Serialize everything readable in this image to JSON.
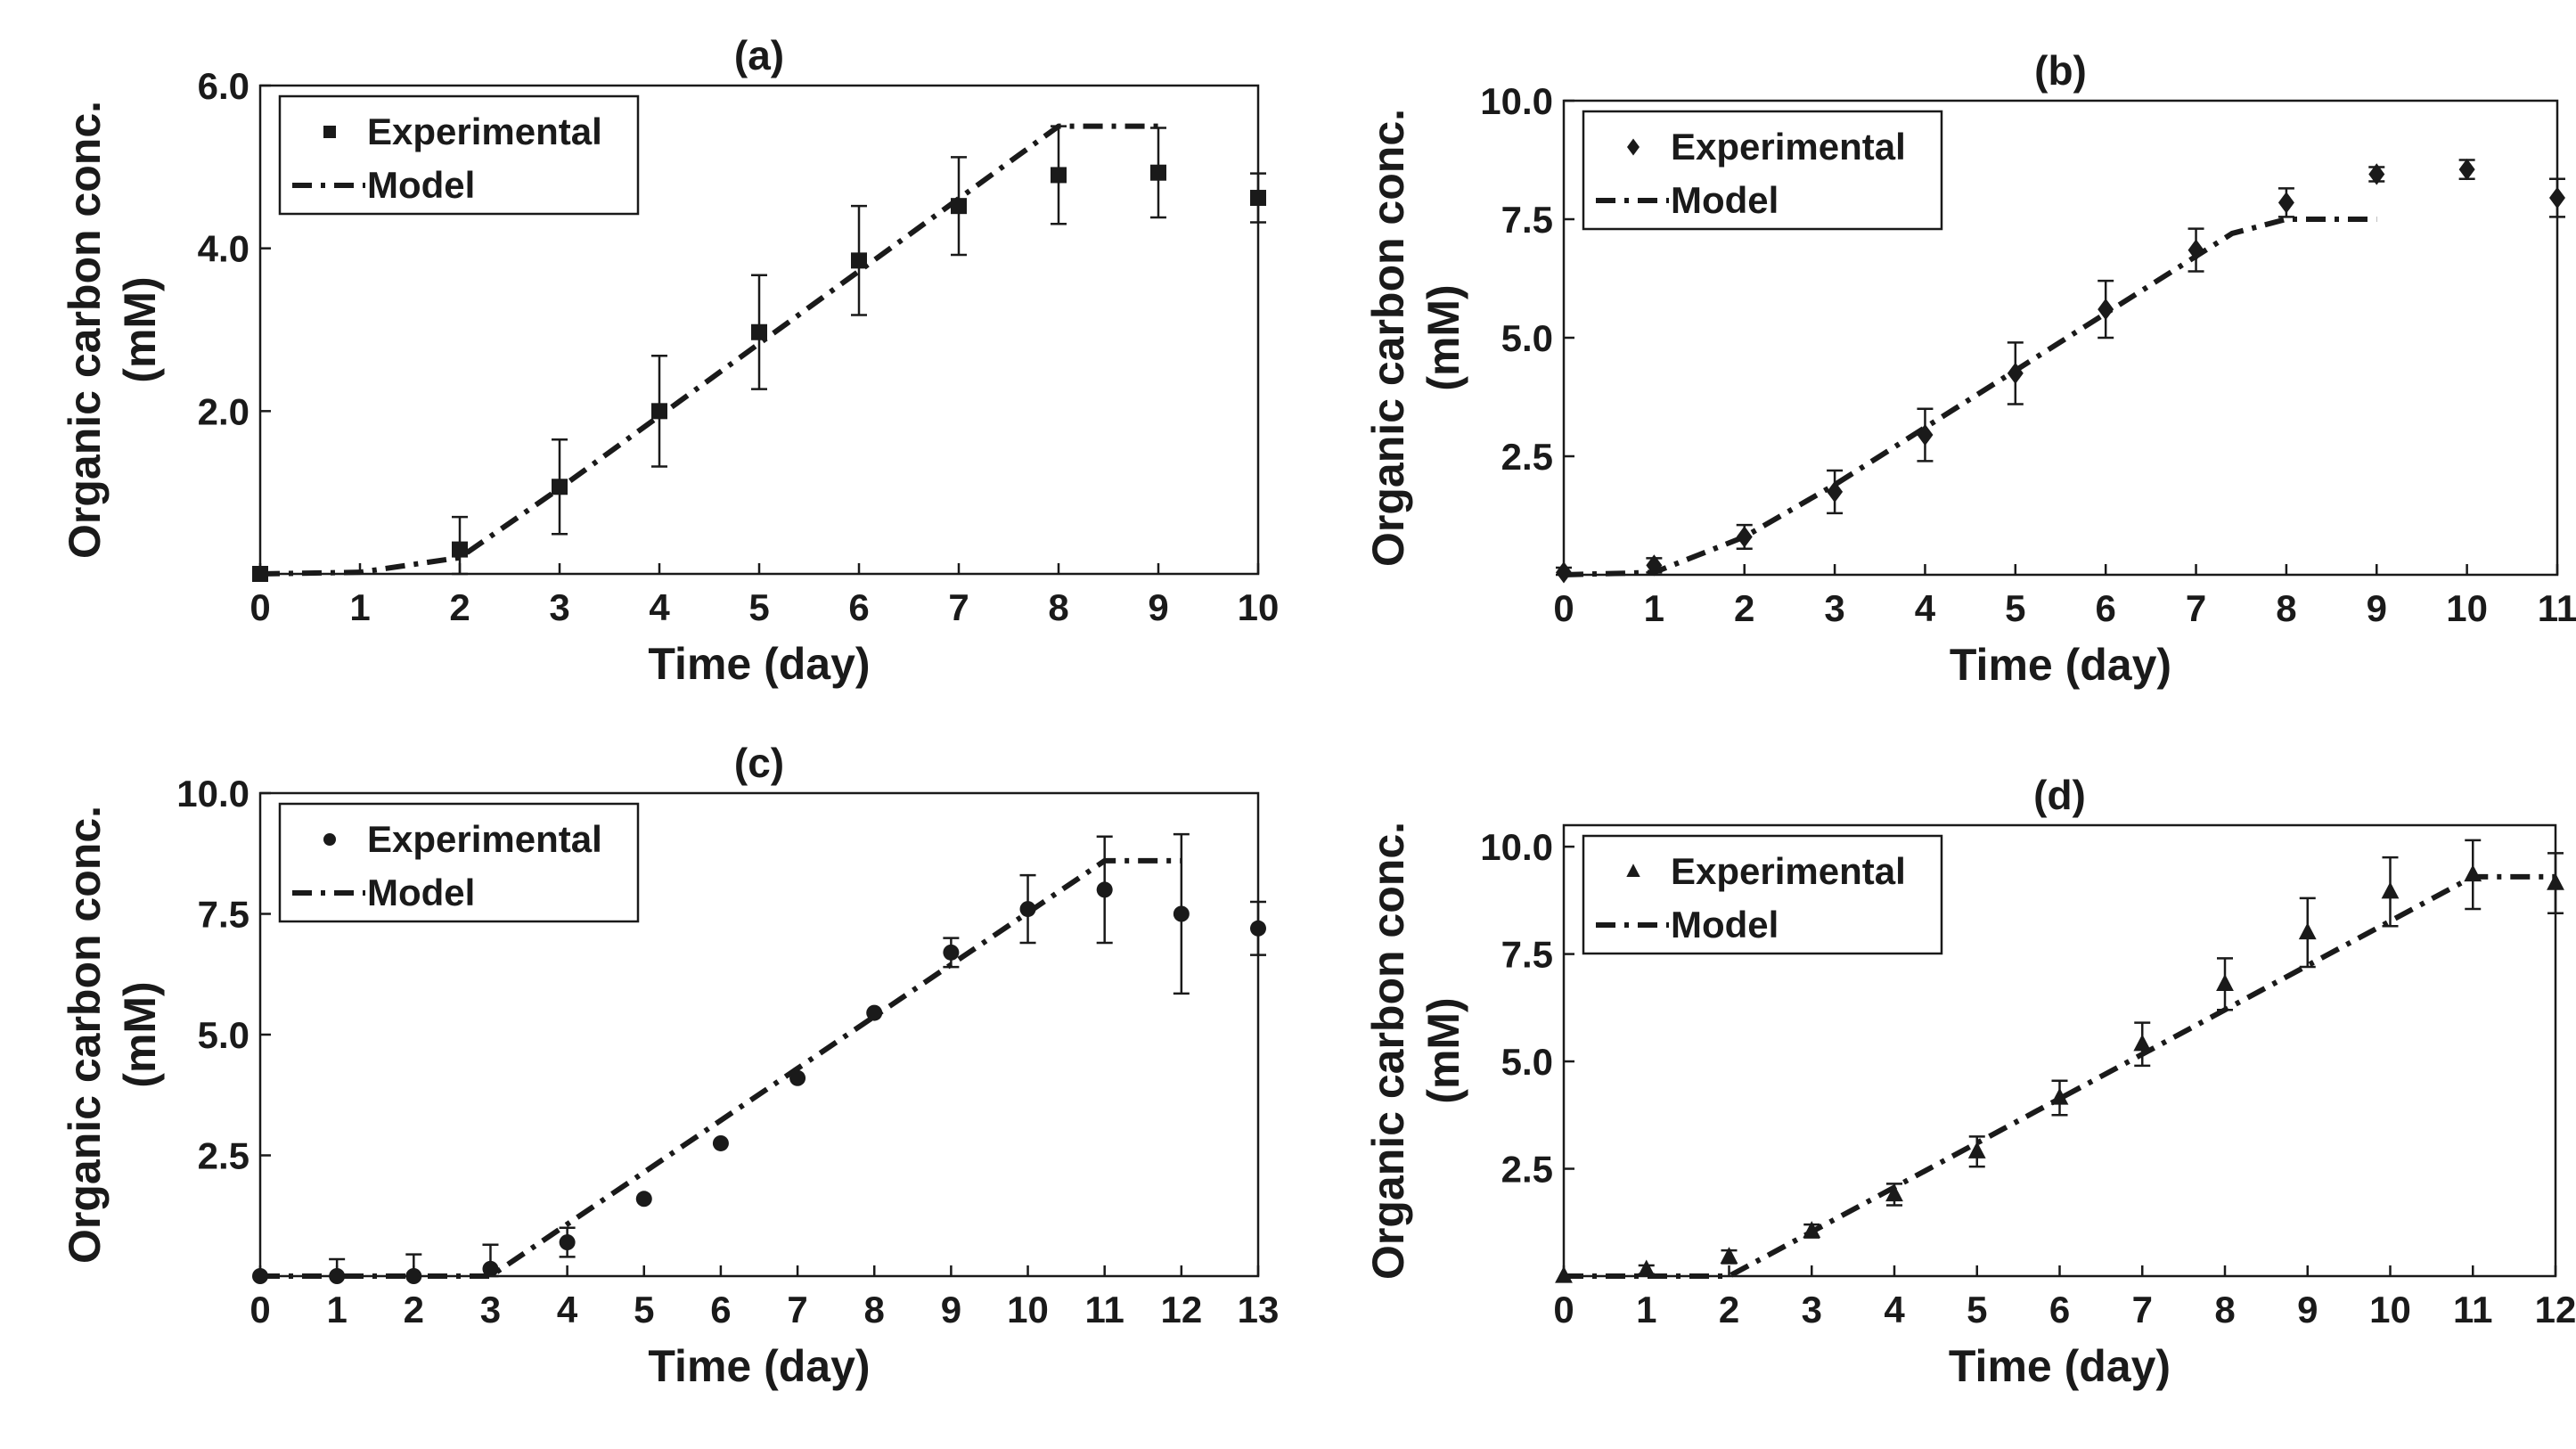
{
  "chart_data": [
    {
      "type": "scatter",
      "title": "(a)",
      "xlabel": "Time (day)",
      "ylabel": [
        "Organic carbon conc.",
        "(mM)"
      ],
      "xlim": [
        0,
        10
      ],
      "ylim": [
        0,
        6
      ],
      "xticks": [
        "0",
        "1",
        "2",
        "3",
        "4",
        "5",
        "6",
        "7",
        "8",
        "9",
        "10"
      ],
      "yticks": [
        {
          "value": 2,
          "label": "2.0"
        },
        {
          "value": 4,
          "label": "4.0"
        },
        {
          "value": 6,
          "label": "6.0"
        }
      ],
      "marker": "square",
      "legend": {
        "position": "top-left",
        "experimental_label": "Experimental",
        "model_label": "Model"
      },
      "experimental": {
        "x": [
          0,
          2,
          3,
          4,
          5,
          6,
          7,
          8,
          9,
          10
        ],
        "y": [
          0.0,
          0.3,
          1.07,
          2.0,
          2.97,
          3.85,
          4.52,
          4.9,
          4.93,
          4.62
        ],
        "err": [
          0.0,
          0.4,
          0.58,
          0.68,
          0.7,
          0.67,
          0.6,
          0.6,
          0.55,
          0.3
        ]
      },
      "model": {
        "x": [
          0,
          1,
          2,
          3,
          8,
          9
        ],
        "y": [
          0.0,
          0.02,
          0.2,
          1.05,
          5.5,
          5.5
        ]
      }
    },
    {
      "type": "scatter",
      "title": "(b)",
      "xlabel": "Time (day)",
      "ylabel": [
        "Organic carbon conc.",
        "(mM)"
      ],
      "xlim": [
        0,
        11
      ],
      "ylim": [
        0,
        10
      ],
      "xticks": [
        "0",
        "1",
        "2",
        "3",
        "4",
        "5",
        "6",
        "7",
        "8",
        "9",
        "10",
        "11"
      ],
      "yticks": [
        {
          "value": 2.5,
          "label": "2.5"
        },
        {
          "value": 5,
          "label": "5.0"
        },
        {
          "value": 7.5,
          "label": "7.5"
        },
        {
          "value": 10,
          "label": "10.0"
        }
      ],
      "marker": "diamond",
      "legend": {
        "position": "top-left",
        "experimental_label": "Experimental",
        "model_label": "Model"
      },
      "experimental": {
        "x": [
          0,
          1,
          2,
          3,
          4,
          5,
          6,
          7,
          8,
          9,
          10,
          11
        ],
        "y": [
          0.05,
          0.2,
          0.8,
          1.75,
          2.95,
          4.25,
          5.6,
          6.85,
          7.85,
          8.45,
          8.55,
          7.95
        ],
        "err": [
          0.1,
          0.15,
          0.25,
          0.45,
          0.55,
          0.65,
          0.6,
          0.45,
          0.3,
          0.15,
          0.2,
          0.4
        ]
      },
      "model": {
        "x": [
          0,
          1,
          2,
          3,
          7.4,
          8,
          9
        ],
        "y": [
          0.0,
          0.05,
          0.8,
          1.9,
          7.2,
          7.5,
          7.5
        ]
      }
    },
    {
      "type": "scatter",
      "title": "(c)",
      "xlabel": "Time (day)",
      "ylabel": [
        "Organic carbon conc.",
        "(mM)"
      ],
      "xlim": [
        0,
        13
      ],
      "ylim": [
        0,
        10
      ],
      "xticks": [
        "0",
        "1",
        "2",
        "3",
        "4",
        "5",
        "6",
        "7",
        "8",
        "9",
        "10",
        "11",
        "12",
        "13"
      ],
      "yticks": [
        {
          "value": 2.5,
          "label": "2.5"
        },
        {
          "value": 5,
          "label": "5.0"
        },
        {
          "value": 7.5,
          "label": "7.5"
        },
        {
          "value": 10,
          "label": "10.0"
        }
      ],
      "marker": "circle",
      "legend": {
        "position": "top-left",
        "experimental_label": "Experimental",
        "model_label": "Model"
      },
      "experimental": {
        "x": [
          0,
          1,
          2,
          3,
          4,
          5,
          6,
          7,
          8,
          9,
          10,
          11,
          12,
          13
        ],
        "y": [
          0.0,
          0.0,
          0.0,
          0.15,
          0.7,
          1.6,
          2.75,
          4.1,
          5.45,
          6.7,
          7.6,
          8.0,
          7.5,
          7.2
        ],
        "err": [
          0.0,
          0.35,
          0.45,
          0.5,
          0.3,
          0.0,
          0.0,
          0.0,
          0.0,
          0.3,
          0.7,
          1.1,
          1.65,
          0.55
        ]
      },
      "model": {
        "x": [
          0,
          3,
          11,
          12
        ],
        "y": [
          0.0,
          0.0,
          8.6,
          8.6
        ]
      }
    },
    {
      "type": "scatter",
      "title": "(d)",
      "xlabel": "Time (day)",
      "ylabel": [
        "Organic carbon conc.",
        "(mM)"
      ],
      "xlim": [
        0,
        12
      ],
      "ylim": [
        0,
        10.5
      ],
      "xticks": [
        "0",
        "1",
        "2",
        "3",
        "4",
        "5",
        "6",
        "7",
        "8",
        "9",
        "10",
        "11",
        "12"
      ],
      "yticks": [
        {
          "value": 2.5,
          "label": "2.5"
        },
        {
          "value": 5,
          "label": "5.0"
        },
        {
          "value": 7.5,
          "label": "7.5"
        },
        {
          "value": 10,
          "label": "10.0"
        }
      ],
      "marker": "triangle",
      "legend": {
        "position": "top-left",
        "experimental_label": "Experimental",
        "model_label": "Model"
      },
      "experimental": {
        "x": [
          0,
          1,
          2,
          3,
          4,
          5,
          6,
          7,
          8,
          9,
          10,
          11,
          12
        ],
        "y": [
          0.0,
          0.15,
          0.45,
          1.05,
          1.9,
          2.9,
          4.15,
          5.4,
          6.8,
          8.0,
          8.95,
          9.35,
          9.15
        ],
        "err": [
          0.0,
          0.1,
          0.15,
          0.15,
          0.25,
          0.35,
          0.4,
          0.5,
          0.6,
          0.8,
          0.8,
          0.8,
          0.7
        ]
      },
      "model": {
        "x": [
          0,
          2,
          11,
          12
        ],
        "y": [
          0.0,
          0.0,
          9.3,
          9.3
        ]
      }
    }
  ]
}
